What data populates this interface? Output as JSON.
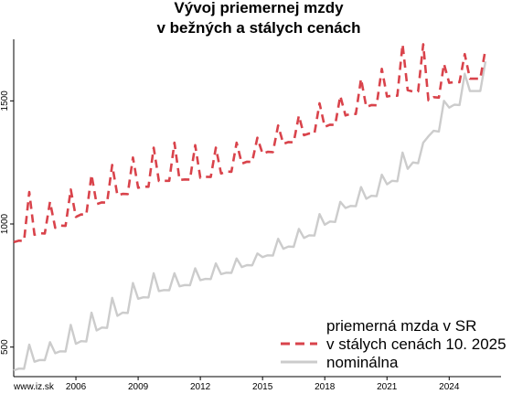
{
  "chart_data": {
    "type": "line",
    "title": [
      "Vývoj priemernej mzdy",
      "v bežných a stálych cenách"
    ],
    "xlabel": "",
    "ylabel": "",
    "xlim": [
      2003.0,
      2026.5
    ],
    "ylim": [
      380,
      1750
    ],
    "xticks": [
      2006,
      2009,
      2012,
      2015,
      2018,
      2021,
      2024
    ],
    "xtick_labels": [
      "2006",
      "2009",
      "2012",
      "2015",
      "2018",
      "2021",
      "2024"
    ],
    "yticks": [
      500,
      1000,
      1500
    ],
    "ytick_labels": [
      "500",
      "1000",
      "1500"
    ],
    "quarterly_pattern": "Q4 peak",
    "legend": {
      "position": "bottom-right",
      "entries": [
        {
          "label_lines": [
            "priemerná mzda v SR",
            "v stálych cenách 10. 2025"
          ],
          "color": "#d9434b",
          "style": "dashed"
        },
        {
          "label_lines": [
            "nominálna"
          ],
          "color": "#cccccc",
          "style": "solid"
        }
      ]
    },
    "source_label": "www.iz.sk",
    "series": [
      {
        "name": "priemerná mzda v SR v stálych cenách 10. 2025",
        "color": "#d9434b",
        "style": "dashed",
        "annual_q123_level": {
          "2003": 930,
          "2004": 960,
          "2005": 990,
          "2006": 1035,
          "2007": 1085,
          "2008": 1120,
          "2009": 1150,
          "2010": 1175,
          "2011": 1180,
          "2012": 1190,
          "2013": 1210,
          "2014": 1250,
          "2015": 1290,
          "2016": 1330,
          "2017": 1365,
          "2018": 1400,
          "2019": 1445,
          "2020": 1480,
          "2021": 1520,
          "2022": 1540,
          "2023": 1510,
          "2024": 1575,
          "2025": 1590
        },
        "q4_values": {
          "2003": 1130,
          "2004": 1090,
          "2005": 1140,
          "2006": 1200,
          "2007": 1240,
          "2008": 1270,
          "2009": 1310,
          "2010": 1330,
          "2011": 1320,
          "2012": 1310,
          "2013": 1330,
          "2014": 1350,
          "2015": 1400,
          "2016": 1440,
          "2017": 1490,
          "2018": 1520,
          "2019": 1590,
          "2020": 1630,
          "2021": 1730,
          "2022": 1730,
          "2023": 1650,
          "2024": 1690,
          "2025": 1710
        }
      },
      {
        "name": "nominálna",
        "color": "#cccccc",
        "style": "solid",
        "annual_q123_level": {
          "2003": 410,
          "2004": 445,
          "2005": 480,
          "2006": 520,
          "2007": 575,
          "2008": 635,
          "2009": 700,
          "2010": 730,
          "2011": 750,
          "2012": 775,
          "2013": 800,
          "2014": 830,
          "2015": 870,
          "2016": 905,
          "2017": 950,
          "2018": 1005,
          "2019": 1070,
          "2020": 1110,
          "2021": 1170,
          "2022": 1240,
          "2023": 1370,
          "2024": 1480,
          "2025": 1540
        },
        "q4_values": {
          "2003": 510,
          "2004": 520,
          "2005": 590,
          "2006": 640,
          "2007": 700,
          "2008": 760,
          "2009": 800,
          "2010": 800,
          "2011": 820,
          "2012": 840,
          "2013": 860,
          "2014": 880,
          "2015": 940,
          "2016": 980,
          "2017": 1040,
          "2018": 1090,
          "2019": 1150,
          "2020": 1200,
          "2021": 1290,
          "2022": 1330,
          "2023": 1500,
          "2024": 1610,
          "2025": 1660
        }
      }
    ]
  }
}
